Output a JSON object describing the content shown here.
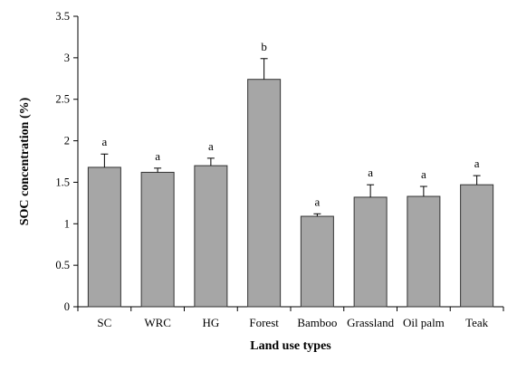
{
  "chart_data": {
    "type": "bar",
    "title": "",
    "xlabel": "Land use types",
    "ylabel": "SOC concentration (%)",
    "ylim": [
      0,
      3.5
    ],
    "yticks": [
      "0",
      "0.5",
      "1",
      "1.5",
      "2",
      "2.5",
      "3",
      "3.5"
    ],
    "grid": false,
    "categories": [
      "SC",
      "WRC",
      "HG",
      "Forest",
      "Bamboo",
      "Grassland",
      "Oil palm",
      "Teak"
    ],
    "values": [
      1.68,
      1.62,
      1.7,
      2.74,
      1.09,
      1.32,
      1.33,
      1.47
    ],
    "errors": [
      0.16,
      0.05,
      0.09,
      0.25,
      0.03,
      0.15,
      0.12,
      0.11
    ],
    "significance": [
      "a",
      "a",
      "a",
      "b",
      "a",
      "a",
      "a",
      "a"
    ],
    "colors": {
      "bar": "#a6a6a6",
      "bar_edge": "#333333",
      "axis": "#000000"
    }
  }
}
